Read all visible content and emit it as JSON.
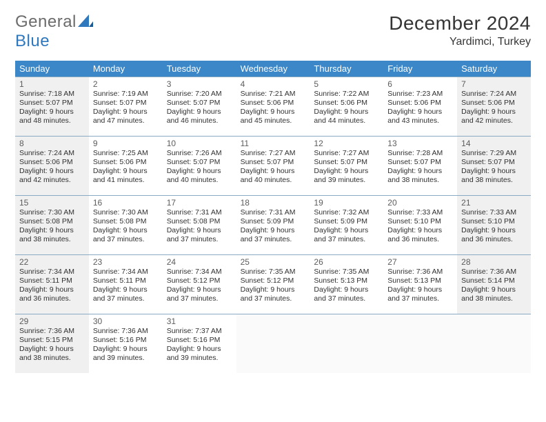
{
  "logo": {
    "general": "General",
    "blue": "Blue"
  },
  "title": "December 2024",
  "subtitle": "Yardimci, Turkey",
  "colors": {
    "header_bg": "#3b87c8",
    "header_fg": "#ffffff",
    "rule": "#8aa9c2",
    "shaded": "#f0f0f0",
    "text": "#303030",
    "logo_gray": "#6b6b6b",
    "logo_blue": "#2f78bd"
  },
  "weekdays": [
    "Sunday",
    "Monday",
    "Tuesday",
    "Wednesday",
    "Thursday",
    "Friday",
    "Saturday"
  ],
  "weeks": [
    [
      {
        "day": "1",
        "shaded": true,
        "sunrise": "Sunrise: 7:18 AM",
        "sunset": "Sunset: 5:07 PM",
        "d1": "Daylight: 9 hours",
        "d2": "and 48 minutes."
      },
      {
        "day": "2",
        "sunrise": "Sunrise: 7:19 AM",
        "sunset": "Sunset: 5:07 PM",
        "d1": "Daylight: 9 hours",
        "d2": "and 47 minutes."
      },
      {
        "day": "3",
        "sunrise": "Sunrise: 7:20 AM",
        "sunset": "Sunset: 5:07 PM",
        "d1": "Daylight: 9 hours",
        "d2": "and 46 minutes."
      },
      {
        "day": "4",
        "sunrise": "Sunrise: 7:21 AM",
        "sunset": "Sunset: 5:06 PM",
        "d1": "Daylight: 9 hours",
        "d2": "and 45 minutes."
      },
      {
        "day": "5",
        "sunrise": "Sunrise: 7:22 AM",
        "sunset": "Sunset: 5:06 PM",
        "d1": "Daylight: 9 hours",
        "d2": "and 44 minutes."
      },
      {
        "day": "6",
        "sunrise": "Sunrise: 7:23 AM",
        "sunset": "Sunset: 5:06 PM",
        "d1": "Daylight: 9 hours",
        "d2": "and 43 minutes."
      },
      {
        "day": "7",
        "shaded": true,
        "sunrise": "Sunrise: 7:24 AM",
        "sunset": "Sunset: 5:06 PM",
        "d1": "Daylight: 9 hours",
        "d2": "and 42 minutes."
      }
    ],
    [
      {
        "day": "8",
        "shaded": true,
        "sunrise": "Sunrise: 7:24 AM",
        "sunset": "Sunset: 5:06 PM",
        "d1": "Daylight: 9 hours",
        "d2": "and 42 minutes."
      },
      {
        "day": "9",
        "sunrise": "Sunrise: 7:25 AM",
        "sunset": "Sunset: 5:06 PM",
        "d1": "Daylight: 9 hours",
        "d2": "and 41 minutes."
      },
      {
        "day": "10",
        "sunrise": "Sunrise: 7:26 AM",
        "sunset": "Sunset: 5:07 PM",
        "d1": "Daylight: 9 hours",
        "d2": "and 40 minutes."
      },
      {
        "day": "11",
        "sunrise": "Sunrise: 7:27 AM",
        "sunset": "Sunset: 5:07 PM",
        "d1": "Daylight: 9 hours",
        "d2": "and 40 minutes."
      },
      {
        "day": "12",
        "sunrise": "Sunrise: 7:27 AM",
        "sunset": "Sunset: 5:07 PM",
        "d1": "Daylight: 9 hours",
        "d2": "and 39 minutes."
      },
      {
        "day": "13",
        "sunrise": "Sunrise: 7:28 AM",
        "sunset": "Sunset: 5:07 PM",
        "d1": "Daylight: 9 hours",
        "d2": "and 38 minutes."
      },
      {
        "day": "14",
        "shaded": true,
        "sunrise": "Sunrise: 7:29 AM",
        "sunset": "Sunset: 5:07 PM",
        "d1": "Daylight: 9 hours",
        "d2": "and 38 minutes."
      }
    ],
    [
      {
        "day": "15",
        "shaded": true,
        "sunrise": "Sunrise: 7:30 AM",
        "sunset": "Sunset: 5:08 PM",
        "d1": "Daylight: 9 hours",
        "d2": "and 38 minutes."
      },
      {
        "day": "16",
        "sunrise": "Sunrise: 7:30 AM",
        "sunset": "Sunset: 5:08 PM",
        "d1": "Daylight: 9 hours",
        "d2": "and 37 minutes."
      },
      {
        "day": "17",
        "sunrise": "Sunrise: 7:31 AM",
        "sunset": "Sunset: 5:08 PM",
        "d1": "Daylight: 9 hours",
        "d2": "and 37 minutes."
      },
      {
        "day": "18",
        "sunrise": "Sunrise: 7:31 AM",
        "sunset": "Sunset: 5:09 PM",
        "d1": "Daylight: 9 hours",
        "d2": "and 37 minutes."
      },
      {
        "day": "19",
        "sunrise": "Sunrise: 7:32 AM",
        "sunset": "Sunset: 5:09 PM",
        "d1": "Daylight: 9 hours",
        "d2": "and 37 minutes."
      },
      {
        "day": "20",
        "sunrise": "Sunrise: 7:33 AM",
        "sunset": "Sunset: 5:10 PM",
        "d1": "Daylight: 9 hours",
        "d2": "and 36 minutes."
      },
      {
        "day": "21",
        "shaded": true,
        "sunrise": "Sunrise: 7:33 AM",
        "sunset": "Sunset: 5:10 PM",
        "d1": "Daylight: 9 hours",
        "d2": "and 36 minutes."
      }
    ],
    [
      {
        "day": "22",
        "shaded": true,
        "sunrise": "Sunrise: 7:34 AM",
        "sunset": "Sunset: 5:11 PM",
        "d1": "Daylight: 9 hours",
        "d2": "and 36 minutes."
      },
      {
        "day": "23",
        "sunrise": "Sunrise: 7:34 AM",
        "sunset": "Sunset: 5:11 PM",
        "d1": "Daylight: 9 hours",
        "d2": "and 37 minutes."
      },
      {
        "day": "24",
        "sunrise": "Sunrise: 7:34 AM",
        "sunset": "Sunset: 5:12 PM",
        "d1": "Daylight: 9 hours",
        "d2": "and 37 minutes."
      },
      {
        "day": "25",
        "sunrise": "Sunrise: 7:35 AM",
        "sunset": "Sunset: 5:12 PM",
        "d1": "Daylight: 9 hours",
        "d2": "and 37 minutes."
      },
      {
        "day": "26",
        "sunrise": "Sunrise: 7:35 AM",
        "sunset": "Sunset: 5:13 PM",
        "d1": "Daylight: 9 hours",
        "d2": "and 37 minutes."
      },
      {
        "day": "27",
        "sunrise": "Sunrise: 7:36 AM",
        "sunset": "Sunset: 5:13 PM",
        "d1": "Daylight: 9 hours",
        "d2": "and 37 minutes."
      },
      {
        "day": "28",
        "shaded": true,
        "sunrise": "Sunrise: 7:36 AM",
        "sunset": "Sunset: 5:14 PM",
        "d1": "Daylight: 9 hours",
        "d2": "and 38 minutes."
      }
    ],
    [
      {
        "day": "29",
        "shaded": true,
        "sunrise": "Sunrise: 7:36 AM",
        "sunset": "Sunset: 5:15 PM",
        "d1": "Daylight: 9 hours",
        "d2": "and 38 minutes."
      },
      {
        "day": "30",
        "sunrise": "Sunrise: 7:36 AM",
        "sunset": "Sunset: 5:16 PM",
        "d1": "Daylight: 9 hours",
        "d2": "and 39 minutes."
      },
      {
        "day": "31",
        "sunrise": "Sunrise: 7:37 AM",
        "sunset": "Sunset: 5:16 PM",
        "d1": "Daylight: 9 hours",
        "d2": "and 39 minutes."
      },
      {
        "empty": true
      },
      {
        "empty": true
      },
      {
        "empty": true
      },
      {
        "empty": true
      }
    ]
  ]
}
